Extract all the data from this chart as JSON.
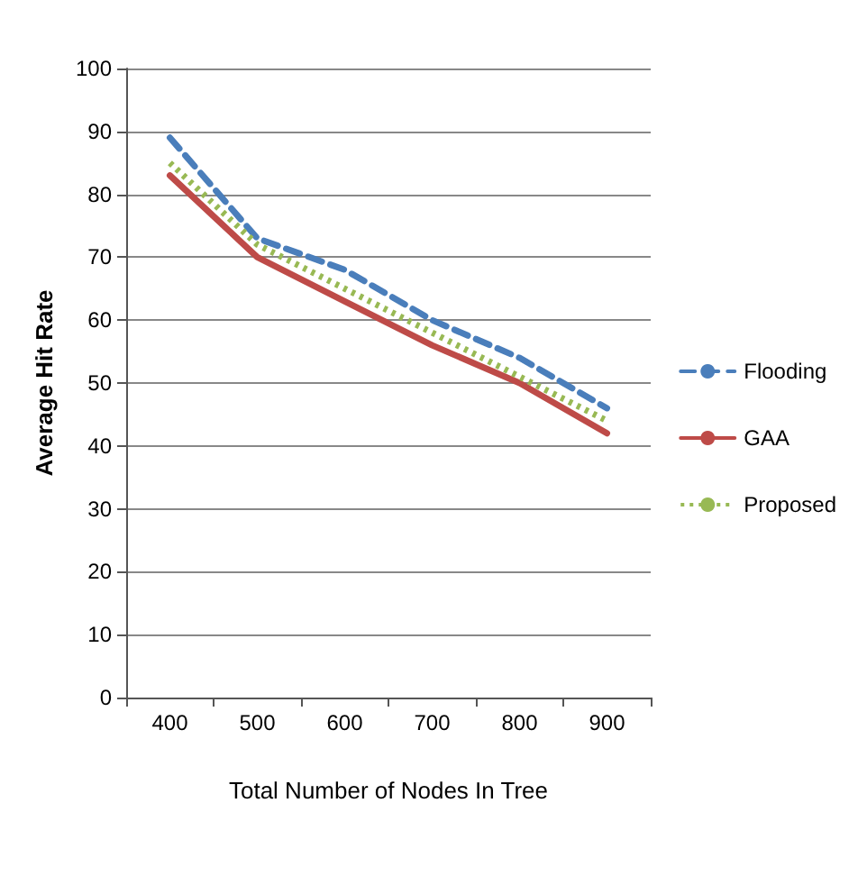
{
  "chart_data": {
    "type": "line",
    "xlabel": "Total Number of Nodes In Tree",
    "ylabel": "Average Hit Rate",
    "categories": [
      "400",
      "500",
      "600",
      "700",
      "800",
      "900"
    ],
    "series": [
      {
        "name": "Flooding",
        "color": "#4a7ebb",
        "line_style": "dashed",
        "values": [
          89,
          73,
          68,
          60,
          54,
          46
        ]
      },
      {
        "name": "GAA",
        "color": "#be4b48",
        "line_style": "solid",
        "values": [
          83,
          70,
          63,
          56,
          50,
          42
        ]
      },
      {
        "name": "Proposed",
        "color": "#98b954",
        "line_style": "dotted",
        "values": [
          85,
          72,
          65,
          58,
          51,
          44
        ]
      }
    ],
    "ylim": [
      0,
      100
    ],
    "yticks": [
      0,
      10,
      20,
      30,
      40,
      50,
      60,
      70,
      80,
      90,
      100
    ],
    "grid": "y",
    "legend": "right",
    "marker": "none"
  }
}
